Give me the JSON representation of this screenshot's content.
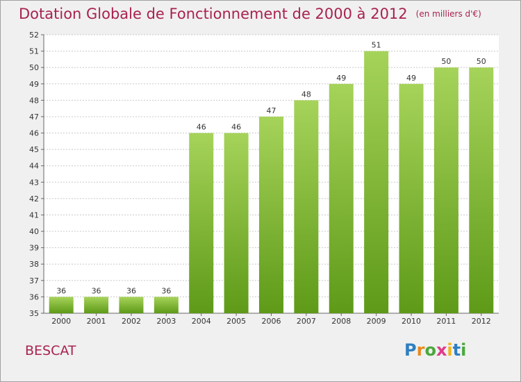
{
  "header": {
    "title": "Dotation Globale de Fonctionnement de 2000 à 2012",
    "unit": "(en milliers d'€)"
  },
  "footer": {
    "commune": "BESCAT",
    "logo_letters": [
      "P",
      "r",
      "o",
      "x",
      "i",
      "t",
      "i"
    ],
    "logo_colors": [
      "#2e7fc1",
      "#e88a1c",
      "#4aa83c",
      "#e03a8a",
      "#f2b418",
      "#2e7fc1",
      "#4aa83c"
    ]
  },
  "colors": {
    "bar_top": "#a6d35a",
    "bar_bottom": "#5e9a18",
    "title": "#a8224f",
    "grid": "#c8c8c8"
  },
  "chart_data": {
    "type": "bar",
    "title": "Dotation Globale de Fonctionnement de 2000 à 2012",
    "subtitle": "(en milliers d'€)",
    "xlabel": "",
    "ylabel": "",
    "categories": [
      "2000",
      "2001",
      "2002",
      "2003",
      "2004",
      "2005",
      "2006",
      "2007",
      "2008",
      "2009",
      "2010",
      "2011",
      "2012"
    ],
    "values": [
      36,
      36,
      36,
      36,
      46,
      46,
      47,
      48,
      49,
      51,
      49,
      50,
      50
    ],
    "ylim": [
      35,
      52
    ],
    "yticks": [
      35,
      36,
      37,
      38,
      39,
      40,
      41,
      42,
      43,
      44,
      45,
      46,
      47,
      48,
      49,
      50,
      51,
      52
    ],
    "grid": true,
    "legend": "none"
  }
}
